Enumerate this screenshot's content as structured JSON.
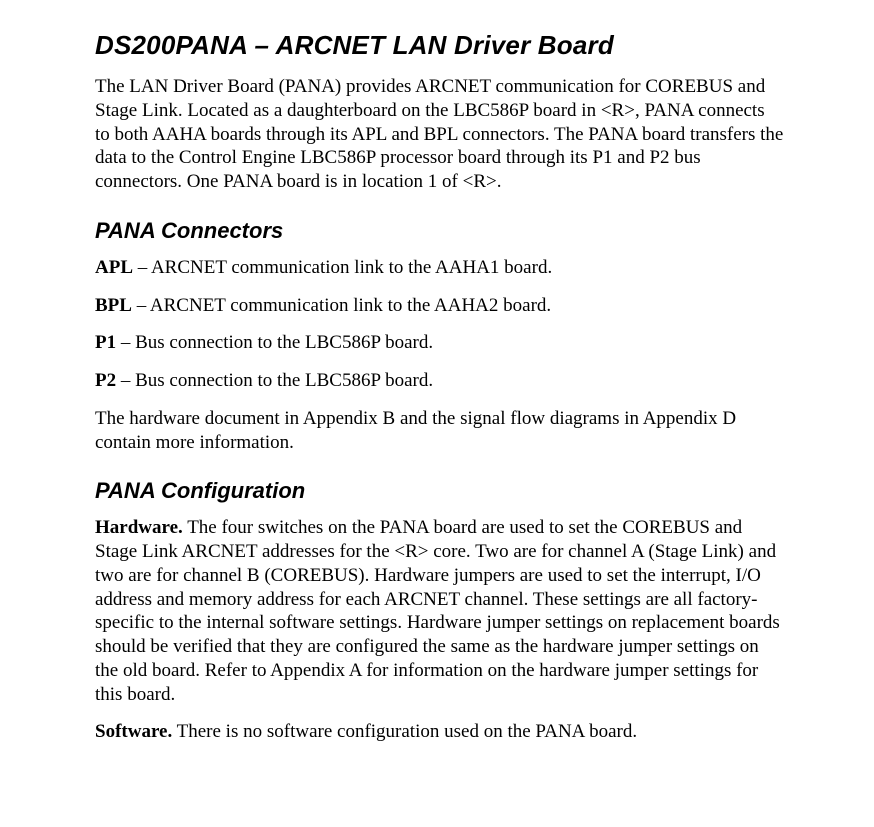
{
  "title": "DS200PANA – ARCNET LAN Driver Board",
  "intro_para": "The LAN Driver Board (PANA) provides ARCNET communication for COREBUS and Stage Link. Located as a daughterboard on the LBC586P board in <R>, PANA connects to both AAHA boards through its APL and BPL connectors. The PANA board transfers the data to the Control Engine LBC586P processor board through its P1 and P2 bus connectors. One PANA board is in location 1 of <R>.",
  "connectors": {
    "heading": "PANA Connectors",
    "items": [
      {
        "label": "APL",
        "desc": " – ARCNET communication link to the AAHA1 board."
      },
      {
        "label": "BPL",
        "desc": " – ARCNET communication link to the AAHA2 board."
      },
      {
        "label": "P1",
        "desc": " – Bus connection to the LBC586P board."
      },
      {
        "label": "P2",
        "desc": " – Bus connection to the LBC586P board."
      }
    ],
    "footer": "The hardware document in Appendix B and the signal flow diagrams in Appendix D contain more information."
  },
  "config": {
    "heading": "PANA Configuration",
    "hardware_label": "Hardware.",
    "hardware_text": " The four switches on the PANA board are used to set the COREBUS and Stage Link ARCNET addresses for the <R> core. Two are for channel A (Stage Link) and two are for channel B (COREBUS). Hardware jumpers are used to set the interrupt, I/O address and memory address for each ARCNET channel. These settings are all factory-specific to the internal software settings. Hardware jumper settings on replacement boards should be verified that they are configured the same as the hardware jumper settings on the old board. Refer to Appendix A for information on the hardware jumper settings for this board.",
    "software_label": "Software.",
    "software_text": " There is no software configuration used on the PANA board."
  },
  "colors": {
    "background": "#ffffff",
    "text": "#000000"
  },
  "typography": {
    "heading_font": "Arial",
    "body_font": "Times New Roman",
    "h1_size_pt": 20,
    "h2_size_pt": 17,
    "body_size_pt": 14
  }
}
